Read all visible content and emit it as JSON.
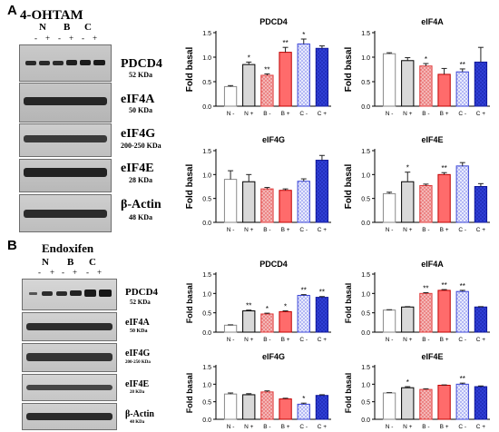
{
  "panels": [
    {
      "letter": "A",
      "blot": {
        "title": "4-OHTAM",
        "groups": [
          "N",
          "B",
          "C"
        ],
        "signs": [
          "-",
          "+",
          "-",
          "+",
          "-",
          "+"
        ],
        "proteins": [
          {
            "name": "PDCD4",
            "kda": "52 KDa"
          },
          {
            "name": "eIF4A",
            "kda": "50 KDa"
          },
          {
            "name": "eIF4G",
            "kda": "200-250 KDa"
          },
          {
            "name": "eIF4E",
            "kda": "28 KDa"
          },
          {
            "name": "β-Actin",
            "kda": "48 KDa"
          }
        ]
      }
    },
    {
      "letter": "B",
      "blot": {
        "title": "Endoxifen",
        "groups": [
          "N",
          "B",
          "C"
        ],
        "signs": [
          "-",
          "+",
          "-",
          "+",
          "-",
          "+"
        ],
        "proteins": [
          {
            "name": "PDCD4",
            "kda": "52 KDa"
          },
          {
            "name": "eIF4A",
            "kda": "50 KDa"
          },
          {
            "name": "eIF4G",
            "kda": "200-250 KDa"
          },
          {
            "name": "eIF4E",
            "kda": "28 KDa"
          },
          {
            "name": "β-Actin",
            "kda": "48 KDa"
          }
        ]
      }
    }
  ],
  "chart_data": [
    {
      "type": "bar",
      "title": "PDCD4",
      "ylabel": "Fold basal",
      "ylim": [
        0,
        1.5
      ],
      "yticks": [
        "0.0",
        "0.5",
        "1.0",
        "1.5"
      ],
      "categories": [
        "N -",
        "N +",
        "B -",
        "B +",
        "C -",
        "C +"
      ],
      "values": [
        0.4,
        0.85,
        0.63,
        1.1,
        1.27,
        1.18
      ],
      "errors": [
        0.02,
        0.05,
        0.03,
        0.1,
        0.1,
        0.05
      ],
      "annotations": [
        "",
        "*",
        "**",
        "**",
        "*",
        ""
      ]
    },
    {
      "type": "bar",
      "title": "eIF4A",
      "ylabel": "Fold basal",
      "ylim": [
        0,
        1.5
      ],
      "yticks": [
        "0.0",
        "0.5",
        "1.0",
        "1.5"
      ],
      "categories": [
        "N -",
        "N +",
        "B -",
        "B +",
        "C -",
        "C +"
      ],
      "values": [
        1.07,
        0.93,
        0.82,
        0.65,
        0.7,
        0.9
      ],
      "errors": [
        0.02,
        0.06,
        0.05,
        0.12,
        0.06,
        0.3
      ],
      "annotations": [
        "",
        "",
        "*",
        "",
        "**",
        ""
      ]
    },
    {
      "type": "bar",
      "title": "eIF4G",
      "ylabel": "Fold basal",
      "ylim": [
        0,
        1.5
      ],
      "yticks": [
        "0.0",
        "0.5",
        "1.0",
        "1.5"
      ],
      "categories": [
        "N -",
        "N +",
        "B -",
        "B +",
        "C -",
        "C +"
      ],
      "values": [
        0.9,
        0.85,
        0.7,
        0.67,
        0.86,
        1.3
      ],
      "errors": [
        0.18,
        0.15,
        0.03,
        0.03,
        0.05,
        0.1
      ],
      "annotations": [
        "",
        "",
        "",
        "",
        "",
        ""
      ]
    },
    {
      "type": "bar",
      "title": "eIF4E",
      "ylabel": "Fold basal",
      "ylim": [
        0,
        1.5
      ],
      "yticks": [
        "0.0",
        "0.5",
        "1.0",
        "1.5"
      ],
      "categories": [
        "N -",
        "N +",
        "B -",
        "B +",
        "C -",
        "C +"
      ],
      "values": [
        0.6,
        0.85,
        0.77,
        1.0,
        1.18,
        0.75
      ],
      "errors": [
        0.03,
        0.2,
        0.03,
        0.04,
        0.07,
        0.06
      ],
      "annotations": [
        "",
        "*",
        "",
        "**",
        "",
        ""
      ]
    },
    {
      "type": "bar",
      "title": "PDCD4",
      "ylabel": "Fold basal",
      "ylim": [
        0,
        1.5
      ],
      "yticks": [
        "0.0",
        "0.5",
        "1.0",
        "1.5"
      ],
      "categories": [
        "N -",
        "N +",
        "B -",
        "B +",
        "C -",
        "C +"
      ],
      "values": [
        0.18,
        0.55,
        0.47,
        0.53,
        0.95,
        0.9
      ],
      "errors": [
        0.01,
        0.02,
        0.02,
        0.02,
        0.02,
        0.02
      ],
      "annotations": [
        "",
        "**",
        "*",
        "*",
        "**",
        "**"
      ]
    },
    {
      "type": "bar",
      "title": "eIF4A",
      "ylabel": "Fold basal",
      "ylim": [
        0,
        1.5
      ],
      "yticks": [
        "0.0",
        "0.5",
        "1.0",
        "1.5"
      ],
      "categories": [
        "N -",
        "N +",
        "B -",
        "B +",
        "C -",
        "C +"
      ],
      "values": [
        0.57,
        0.65,
        1.0,
        1.08,
        1.05,
        0.65
      ],
      "errors": [
        0.01,
        0.01,
        0.02,
        0.02,
        0.03,
        0.01
      ],
      "annotations": [
        "",
        "",
        "**",
        "**",
        "**",
        ""
      ]
    },
    {
      "type": "bar",
      "title": "eIF4G",
      "ylabel": "Fold basal",
      "ylim": [
        0,
        1.5
      ],
      "yticks": [
        "0.0",
        "0.5",
        "1.0",
        "1.5"
      ],
      "categories": [
        "N -",
        "N +",
        "B -",
        "B +",
        "C -",
        "C +"
      ],
      "values": [
        0.72,
        0.7,
        0.78,
        0.58,
        0.43,
        0.68
      ],
      "errors": [
        0.03,
        0.03,
        0.03,
        0.02,
        0.03,
        0.02
      ],
      "annotations": [
        "",
        "",
        "",
        "",
        "*",
        ""
      ]
    },
    {
      "type": "bar",
      "title": "eIF4E",
      "ylabel": "Fold basal",
      "ylim": [
        0,
        1.5
      ],
      "yticks": [
        "0.0",
        "0.5",
        "1.0",
        "1.5"
      ],
      "categories": [
        "N -",
        "N +",
        "B -",
        "B +",
        "C -",
        "C +"
      ],
      "values": [
        0.75,
        0.9,
        0.85,
        0.97,
        1.0,
        0.93
      ],
      "errors": [
        0.01,
        0.03,
        0.02,
        0.01,
        0.03,
        0.02
      ],
      "annotations": [
        "",
        "*",
        "",
        "",
        "**",
        ""
      ]
    }
  ],
  "bar_style": [
    {
      "fill": "#ffffff",
      "stroke": "#8a8a8a",
      "pattern": "none"
    },
    {
      "fill": "#d9d9d9",
      "stroke": "#000000",
      "pattern": "none"
    },
    {
      "fill": "#f4b6b6",
      "stroke": "#e03b3b",
      "pattern": "dots"
    },
    {
      "fill": "#ff6b6b",
      "stroke": "#c00000",
      "pattern": "solid"
    },
    {
      "fill": "#b3b8f5",
      "stroke": "#3b46d6",
      "pattern": "checker"
    },
    {
      "fill": "#2f3fd6",
      "stroke": "#10189a",
      "pattern": "dots"
    }
  ]
}
